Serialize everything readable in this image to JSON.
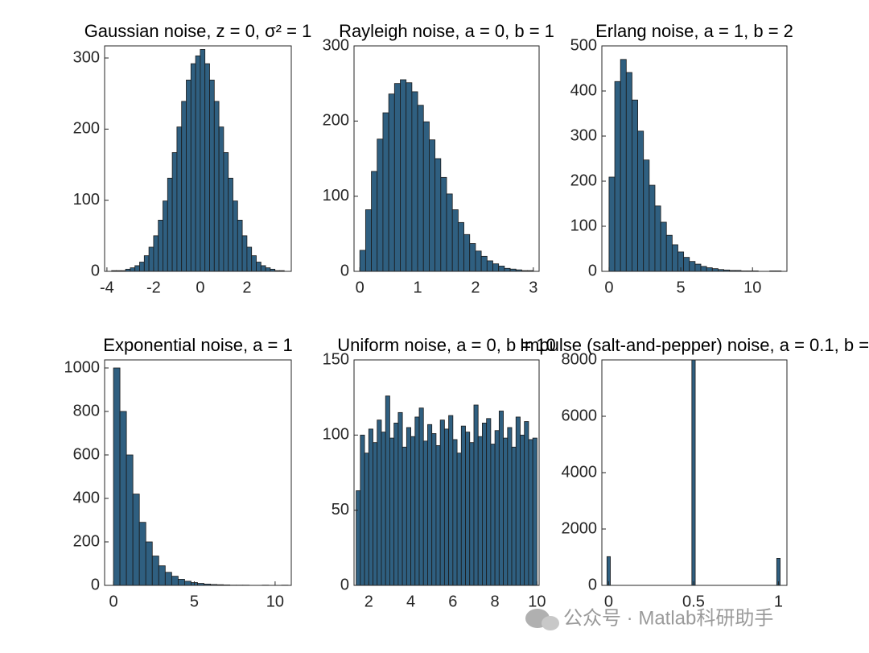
{
  "chart_data": [
    {
      "type": "histogram",
      "title": "Gaussian noise, z = 0, σ² = 1",
      "color": "#2f5f80",
      "bins": [
        -4.0,
        -3.8,
        -3.6,
        -3.4,
        -3.2,
        -3.0,
        -2.8,
        -2.6,
        -2.4,
        -2.2,
        -2.0,
        -1.8,
        -1.6,
        -1.4,
        -1.2,
        -1.0,
        -0.8,
        -0.6,
        -0.4,
        -0.2,
        0.0,
        0.2,
        0.4,
        0.6,
        0.8,
        1.0,
        1.2,
        1.4,
        1.6,
        1.8,
        2.0,
        2.2,
        2.4,
        2.6,
        2.8,
        3.0,
        3.2,
        3.4,
        3.6
      ],
      "values": [
        0,
        1,
        1,
        1,
        3,
        5,
        8,
        13,
        22,
        34,
        50,
        72,
        99,
        131,
        167,
        203,
        239,
        269,
        292,
        303,
        312,
        292,
        269,
        239,
        203,
        167,
        131,
        99,
        72,
        50,
        34,
        22,
        13,
        8,
        5,
        3,
        1,
        1
      ],
      "xlim": [
        -4.1,
        3.9
      ],
      "ylim": [
        0,
        317
      ],
      "xticks": [
        -4,
        -2,
        0,
        2
      ],
      "yticks": [
        0,
        100,
        200,
        300
      ]
    },
    {
      "type": "histogram",
      "title": "Rayleigh noise, a = 0, b = 1",
      "color": "#2f5f80",
      "bins": [
        0.0,
        0.1,
        0.2,
        0.3,
        0.4,
        0.5,
        0.6,
        0.7,
        0.8,
        0.9,
        1.0,
        1.1,
        1.2,
        1.3,
        1.4,
        1.5,
        1.6,
        1.7,
        1.8,
        1.9,
        2.0,
        2.1,
        2.2,
        2.3,
        2.4,
        2.5,
        2.6,
        2.7,
        2.8,
        2.9,
        3.0
      ],
      "values": [
        28,
        82,
        133,
        176,
        211,
        236,
        250,
        255,
        251,
        239,
        221,
        199,
        175,
        150,
        125,
        103,
        82,
        65,
        49,
        37,
        27,
        20,
        14,
        10,
        7,
        4,
        3,
        2,
        1,
        1
      ],
      "xlim": [
        -0.1,
        3.1
      ],
      "ylim": [
        0,
        300
      ],
      "xticks": [
        0,
        1,
        2,
        3
      ],
      "yticks": [
        0,
        100,
        200,
        300
      ]
    },
    {
      "type": "histogram",
      "title": "Erlang noise, a = 1, b = 2",
      "color": "#2f5f80",
      "bins": [
        0.0,
        0.4,
        0.8,
        1.2,
        1.6,
        2.0,
        2.4,
        2.8,
        3.2,
        3.6,
        4.0,
        4.4,
        4.8,
        5.2,
        5.6,
        6.0,
        6.4,
        6.8,
        7.2,
        7.6,
        8.0,
        8.4,
        8.8,
        9.2,
        9.6,
        10.0,
        10.4,
        10.8,
        11.2,
        11.6,
        12.0
      ],
      "values": [
        209,
        421,
        470,
        441,
        380,
        311,
        247,
        191,
        145,
        109,
        80,
        59,
        43,
        31,
        22,
        16,
        11,
        8,
        6,
        4,
        3,
        2,
        2,
        1,
        1,
        1,
        0,
        0,
        1,
        1
      ],
      "xlim": [
        -0.5,
        12.4
      ],
      "ylim": [
        0,
        500
      ],
      "xticks": [
        0,
        5,
        10
      ],
      "yticks": [
        0,
        100,
        200,
        300,
        400,
        500
      ]
    },
    {
      "type": "histogram",
      "title": "Exponential noise, a = 1",
      "color": "#2f5f80",
      "bins": [
        0.0,
        0.4,
        0.8,
        1.2,
        1.6,
        2.0,
        2.4,
        2.8,
        3.2,
        3.6,
        4.0,
        4.4,
        4.8,
        5.2,
        5.6,
        6.0,
        6.4,
        6.8,
        7.2,
        7.6,
        8.0,
        8.4,
        8.8,
        9.2,
        9.6,
        10.0,
        10.4,
        10.8
      ],
      "values": [
        1000,
        800,
        600,
        420,
        290,
        200,
        135,
        90,
        60,
        42,
        28,
        19,
        13,
        9,
        6,
        4,
        3,
        2,
        1,
        1,
        1,
        0,
        0,
        1,
        0,
        0,
        1
      ],
      "xlim": [
        -0.55,
        11
      ],
      "ylim": [
        0,
        1037
      ],
      "xticks": [
        0,
        5,
        10
      ],
      "yticks": [
        0,
        200,
        400,
        600,
        800,
        1000
      ]
    },
    {
      "type": "histogram",
      "title": "Uniform noise, a = 0, b = 10",
      "color": "#2f5f80",
      "bins": [
        1.4,
        1.6,
        1.8,
        2.0,
        2.2,
        2.4,
        2.6,
        2.8,
        3.0,
        3.2,
        3.4,
        3.6,
        3.8,
        4.0,
        4.2,
        4.4,
        4.6,
        4.8,
        5.0,
        5.2,
        5.4,
        5.6,
        5.8,
        6.0,
        6.2,
        6.4,
        6.6,
        6.8,
        7.0,
        7.2,
        7.4,
        7.6,
        7.8,
        8.0,
        8.2,
        8.4,
        8.6,
        8.8,
        9.0,
        9.2,
        9.4,
        9.6,
        9.8,
        10.0
      ],
      "values": [
        63,
        100,
        88,
        104,
        95,
        110,
        102,
        126,
        98,
        108,
        115,
        92,
        105,
        99,
        112,
        118,
        96,
        107,
        101,
        93,
        110,
        104,
        113,
        97,
        88,
        106,
        102,
        95,
        120,
        99,
        108,
        111,
        94,
        103,
        116,
        98,
        105,
        92,
        112,
        100,
        109,
        97,
        98
      ],
      "xlim": [
        1.3,
        10.1
      ],
      "ylim": [
        0,
        150
      ],
      "xticks": [
        2,
        4,
        6,
        8,
        10
      ],
      "yticks": [
        0,
        50,
        100,
        150
      ]
    },
    {
      "type": "histogram",
      "title": "Impulse (salt-and-pepper) noise, a = 0.1, b =",
      "color": "#2f5f80",
      "bins": [
        -0.01,
        0.01,
        0.49,
        0.51,
        0.99,
        1.01
      ],
      "values": [
        1020,
        0,
        8000,
        0,
        960
      ],
      "xlim": [
        -0.04,
        1.05
      ],
      "ylim": [
        0,
        8000
      ],
      "xticks": [
        0,
        0.5,
        1
      ],
      "yticks": [
        0,
        2000,
        4000,
        6000,
        8000
      ]
    }
  ],
  "watermark": "公众号 · Matlab科研助手"
}
